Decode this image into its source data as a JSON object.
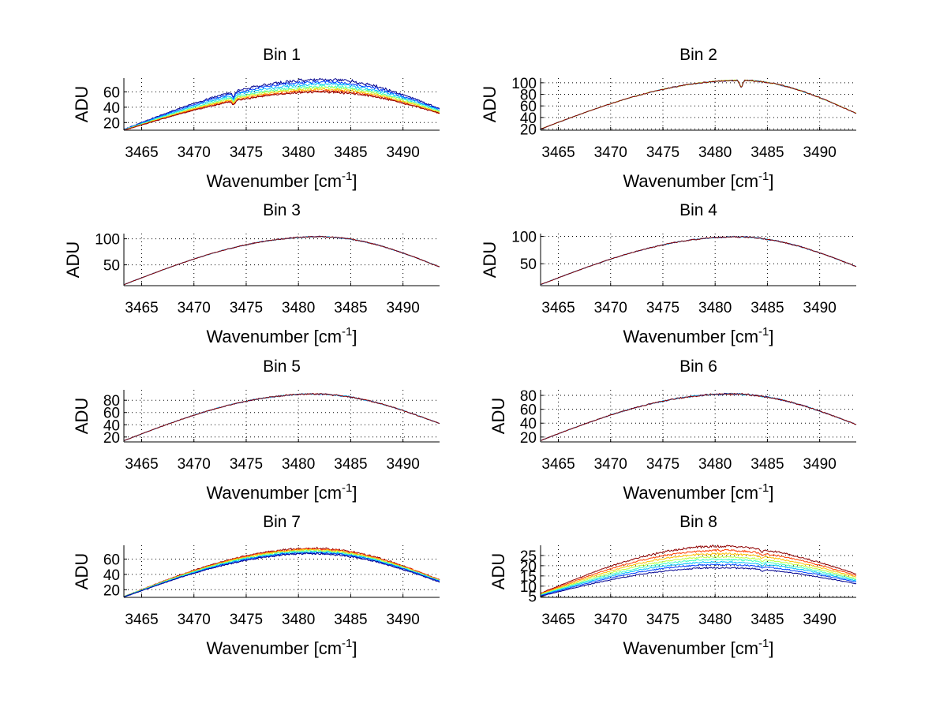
{
  "chart_data": [
    {
      "type": "line",
      "title": "Bin 1",
      "xlabel": "Wavenumber [cm",
      "xlabel_sup": "-1",
      "xlabel_end": "]",
      "ylabel": "ADU",
      "xlim": [
        3463.3,
        3493.5
      ],
      "ylim": [
        10,
        78
      ],
      "xticks": [
        3465,
        3470,
        3475,
        3480,
        3485,
        3490
      ],
      "yticks": [
        20,
        40,
        60
      ],
      "grid": true,
      "series": [
        {
          "name": "curve-1",
          "color": "#00008f",
          "start": 11,
          "peak": 76,
          "end": 38,
          "peak_x": 3482.5,
          "noise": 2.0
        },
        {
          "name": "curve-2",
          "color": "#0040ff",
          "start": 11,
          "peak": 73,
          "end": 37,
          "peak_x": 3482.5,
          "noise": 1.8
        },
        {
          "name": "curve-3",
          "color": "#00bfff",
          "start": 10.5,
          "peak": 70,
          "end": 36,
          "peak_x": 3482.5,
          "noise": 1.6
        },
        {
          "name": "curve-4",
          "color": "#40ffbf",
          "start": 10.5,
          "peak": 67,
          "end": 35,
          "peak_x": 3482.5,
          "noise": 1.5
        },
        {
          "name": "curve-5",
          "color": "#bfff40",
          "start": 10,
          "peak": 65,
          "end": 34,
          "peak_x": 3482.5,
          "noise": 1.5
        },
        {
          "name": "curve-6",
          "color": "#ffbf00",
          "start": 10,
          "peak": 63,
          "end": 33,
          "peak_x": 3482.5,
          "noise": 1.4
        },
        {
          "name": "curve-7",
          "color": "#ff4000",
          "start": 10,
          "peak": 61,
          "end": 32,
          "peak_x": 3482.5,
          "noise": 1.4
        },
        {
          "name": "curve-8",
          "color": "#8f0000",
          "start": 10,
          "peak": 60,
          "end": 32,
          "peak_x": 3482.5,
          "noise": 1.4
        }
      ],
      "dips": [
        {
          "x": 3473.8,
          "depth": 6
        }
      ]
    },
    {
      "type": "line",
      "title": "Bin 2",
      "xlabel": "Wavenumber [cm",
      "xlabel_sup": "-1",
      "xlabel_end": "]",
      "ylabel": "ADU",
      "xlim": [
        3463.3,
        3493.5
      ],
      "ylim": [
        18,
        108
      ],
      "xticks": [
        3465,
        3470,
        3475,
        3480,
        3485,
        3490
      ],
      "yticks": [
        20,
        40,
        60,
        80,
        100
      ],
      "grid": true,
      "series": [
        {
          "name": "curve-1",
          "color": "#00008f",
          "start": 20,
          "peak": 104,
          "end": 47,
          "peak_x": 3482.5,
          "noise": 1.0
        },
        {
          "name": "curve-2",
          "color": "#00bfff",
          "start": 20,
          "peak": 104,
          "end": 47,
          "peak_x": 3482.5,
          "noise": 1.0
        },
        {
          "name": "curve-3",
          "color": "#bfff40",
          "start": 20,
          "peak": 104,
          "end": 47,
          "peak_x": 3482.5,
          "noise": 1.0
        },
        {
          "name": "curve-4",
          "color": "#8f0000",
          "start": 20,
          "peak": 104,
          "end": 47,
          "peak_x": 3482.5,
          "noise": 1.0
        }
      ],
      "dips": [
        {
          "x": 3482.5,
          "depth": 12
        }
      ]
    },
    {
      "type": "line",
      "title": "Bin 3",
      "xlabel": "Wavenumber [cm",
      "xlabel_sup": "-1",
      "xlabel_end": "]",
      "ylabel": "ADU",
      "xlim": [
        3463.3,
        3493.5
      ],
      "ylim": [
        10,
        110
      ],
      "xticks": [
        3465,
        3470,
        3475,
        3480,
        3485,
        3490
      ],
      "yticks": [
        50,
        100
      ],
      "grid": true,
      "series": [
        {
          "name": "curve-1",
          "color": "#00008f",
          "start": 12,
          "peak": 104,
          "end": 46,
          "peak_x": 3482.0,
          "noise": 1.0
        },
        {
          "name": "curve-2",
          "color": "#00bfff",
          "start": 12,
          "peak": 104,
          "end": 46,
          "peak_x": 3482.0,
          "noise": 1.0
        },
        {
          "name": "curve-3",
          "color": "#8f0000",
          "start": 12,
          "peak": 104,
          "end": 46,
          "peak_x": 3482.0,
          "noise": 1.0
        }
      ],
      "dips": []
    },
    {
      "type": "line",
      "title": "Bin 4",
      "xlabel": "Wavenumber [cm",
      "xlabel_sup": "-1",
      "xlabel_end": "]",
      "ylabel": "ADU",
      "xlim": [
        3463.3,
        3493.5
      ],
      "ylim": [
        10,
        105
      ],
      "xticks": [
        3465,
        3470,
        3475,
        3480,
        3485,
        3490
      ],
      "yticks": [
        50,
        100
      ],
      "grid": true,
      "series": [
        {
          "name": "curve-1",
          "color": "#00008f",
          "start": 12,
          "peak": 99,
          "end": 45,
          "peak_x": 3482.0,
          "noise": 1.0
        },
        {
          "name": "curve-2",
          "color": "#00bfff",
          "start": 12,
          "peak": 99,
          "end": 45,
          "peak_x": 3482.0,
          "noise": 1.0
        },
        {
          "name": "curve-3",
          "color": "#8f0000",
          "start": 12,
          "peak": 99,
          "end": 45,
          "peak_x": 3482.0,
          "noise": 1.0
        }
      ],
      "dips": []
    },
    {
      "type": "line",
      "title": "Bin 5",
      "xlabel": "Wavenumber [cm",
      "xlabel_sup": "-1",
      "xlabel_end": "]",
      "ylabel": "ADU",
      "xlim": [
        3463.3,
        3493.5
      ],
      "ylim": [
        12,
        97
      ],
      "xticks": [
        3465,
        3470,
        3475,
        3480,
        3485,
        3490
      ],
      "yticks": [
        20,
        40,
        60,
        80
      ],
      "grid": true,
      "series": [
        {
          "name": "curve-1",
          "color": "#00008f",
          "start": 14,
          "peak": 90,
          "end": 42,
          "peak_x": 3481.5,
          "noise": 1.0
        },
        {
          "name": "curve-2",
          "color": "#00bfff",
          "start": 14,
          "peak": 90,
          "end": 42,
          "peak_x": 3481.5,
          "noise": 1.0
        },
        {
          "name": "curve-3",
          "color": "#8f0000",
          "start": 14,
          "peak": 90,
          "end": 42,
          "peak_x": 3481.5,
          "noise": 1.0
        }
      ],
      "dips": []
    },
    {
      "type": "line",
      "title": "Bin 6",
      "xlabel": "Wavenumber [cm",
      "xlabel_sup": "-1",
      "xlabel_end": "]",
      "ylabel": "ADU",
      "xlim": [
        3463.3,
        3493.5
      ],
      "ylim": [
        13,
        88
      ],
      "xticks": [
        3465,
        3470,
        3475,
        3480,
        3485,
        3490
      ],
      "yticks": [
        20,
        40,
        60,
        80
      ],
      "grid": true,
      "series": [
        {
          "name": "curve-1",
          "color": "#00008f",
          "start": 15,
          "peak": 82,
          "end": 38,
          "peak_x": 3481.5,
          "noise": 1.0
        },
        {
          "name": "curve-2",
          "color": "#00bfff",
          "start": 15,
          "peak": 82,
          "end": 38,
          "peak_x": 3481.5,
          "noise": 1.0
        },
        {
          "name": "curve-3",
          "color": "#8f0000",
          "start": 15,
          "peak": 82,
          "end": 38,
          "peak_x": 3481.5,
          "noise": 1.0
        }
      ],
      "dips": []
    },
    {
      "type": "line",
      "title": "Bin 7",
      "xlabel": "Wavenumber [cm",
      "xlabel_sup": "-1",
      "xlabel_end": "]",
      "ylabel": "ADU",
      "xlim": [
        3463.3,
        3493.5
      ],
      "ylim": [
        10,
        78
      ],
      "xticks": [
        3465,
        3470,
        3475,
        3480,
        3485,
        3490
      ],
      "yticks": [
        20,
        40,
        60
      ],
      "grid": true,
      "series": [
        {
          "name": "curve-1",
          "color": "#8f0000",
          "start": 11,
          "peak": 74,
          "end": 33,
          "peak_x": 3481.5,
          "noise": 1.2
        },
        {
          "name": "curve-2",
          "color": "#ff4000",
          "start": 11,
          "peak": 73,
          "end": 33,
          "peak_x": 3481.5,
          "noise": 1.2
        },
        {
          "name": "curve-3",
          "color": "#ffbf00",
          "start": 11,
          "peak": 72,
          "end": 32,
          "peak_x": 3481.5,
          "noise": 1.2
        },
        {
          "name": "curve-4",
          "color": "#bfff40",
          "start": 11,
          "peak": 71,
          "end": 32,
          "peak_x": 3481.5,
          "noise": 1.2
        },
        {
          "name": "curve-5",
          "color": "#40ffbf",
          "start": 11,
          "peak": 70,
          "end": 32,
          "peak_x": 3481.5,
          "noise": 1.2
        },
        {
          "name": "curve-6",
          "color": "#00bfff",
          "start": 10.5,
          "peak": 69,
          "end": 31,
          "peak_x": 3481.5,
          "noise": 1.2
        },
        {
          "name": "curve-7",
          "color": "#0040ff",
          "start": 10.5,
          "peak": 68,
          "end": 31,
          "peak_x": 3481.5,
          "noise": 1.2
        },
        {
          "name": "curve-8",
          "color": "#00008f",
          "start": 10.5,
          "peak": 67,
          "end": 30,
          "peak_x": 3481.5,
          "noise": 1.2
        }
      ],
      "dips": []
    },
    {
      "type": "line",
      "title": "Bin 8",
      "xlabel": "Wavenumber [cm",
      "xlabel_sup": "-1",
      "xlabel_end": "]",
      "ylabel": "ADU",
      "xlim": [
        3463.3,
        3493.5
      ],
      "ylim": [
        4.5,
        30
      ],
      "xticks": [
        3465,
        3470,
        3475,
        3480,
        3485,
        3490
      ],
      "yticks": [
        5,
        10,
        15,
        20,
        25
      ],
      "grid": true,
      "series": [
        {
          "name": "curve-1",
          "color": "#8f0000",
          "start": 6.5,
          "peak": 29.5,
          "end": 16,
          "peak_x": 3480.5,
          "noise": 0.5
        },
        {
          "name": "curve-2",
          "color": "#ff4000",
          "start": 6.3,
          "peak": 27.5,
          "end": 15.2,
          "peak_x": 3480.5,
          "noise": 0.45
        },
        {
          "name": "curve-3",
          "color": "#ffbf00",
          "start": 6.1,
          "peak": 25.8,
          "end": 14.5,
          "peak_x": 3480.5,
          "noise": 0.45
        },
        {
          "name": "curve-4",
          "color": "#bfff40",
          "start": 5.9,
          "peak": 24.3,
          "end": 13.8,
          "peak_x": 3480.5,
          "noise": 0.4
        },
        {
          "name": "curve-5",
          "color": "#40ffbf",
          "start": 5.7,
          "peak": 23.0,
          "end": 13.2,
          "peak_x": 3480.5,
          "noise": 0.4
        },
        {
          "name": "curve-6",
          "color": "#00bfff",
          "start": 5.5,
          "peak": 21.8,
          "end": 12.6,
          "peak_x": 3480.5,
          "noise": 0.4
        },
        {
          "name": "curve-7",
          "color": "#0040ff",
          "start": 5.3,
          "peak": 20.5,
          "end": 12.0,
          "peak_x": 3480.5,
          "noise": 0.35
        },
        {
          "name": "curve-8",
          "color": "#00008f",
          "start": 5.1,
          "peak": 19.0,
          "end": 11.2,
          "peak_x": 3480.5,
          "noise": 0.35
        }
      ],
      "dips": [
        {
          "x": 3484.5,
          "depth": 1.2
        }
      ]
    }
  ]
}
